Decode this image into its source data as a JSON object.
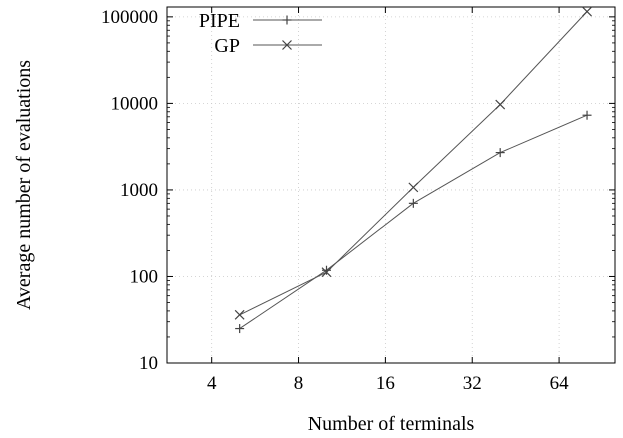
{
  "chart_data": {
    "type": "line",
    "xlabel": "Number of terminals",
    "ylabel": "Average number of evaluations",
    "xscale": "log2",
    "yscale": "log10",
    "xlim": [
      2.8,
      100
    ],
    "ylim": [
      10,
      130000
    ],
    "xticks": [
      4,
      8,
      16,
      32,
      64
    ],
    "xtick_labels": [
      "4",
      "8",
      "16",
      "32",
      "64"
    ],
    "yticks": [
      10,
      100,
      1000,
      10000,
      100000
    ],
    "ytick_labels": [
      "10",
      "100",
      "1000",
      "10000",
      "100000"
    ],
    "grid": true,
    "legend_position": "top-left",
    "series": [
      {
        "name": "PIPE",
        "marker": "plus",
        "x": [
          5,
          10,
          20,
          40,
          80
        ],
        "y": [
          25,
          118,
          700,
          2700,
          7300
        ]
      },
      {
        "name": "GP",
        "marker": "cross",
        "x": [
          5,
          10,
          20,
          40,
          80
        ],
        "y": [
          36,
          112,
          1070,
          9700,
          115000
        ]
      }
    ]
  }
}
